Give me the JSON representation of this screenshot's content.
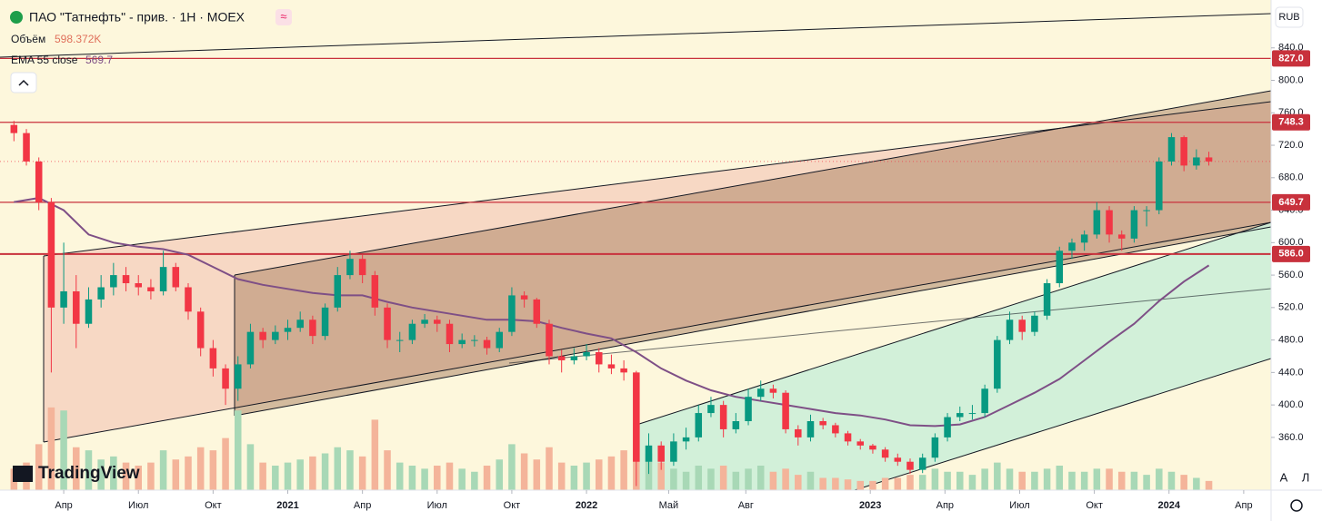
{
  "header": {
    "symbol": "ПАО \"Татнефть\" - прив. · 1H · MOEX",
    "badge": "≈",
    "volume_label": "Объём",
    "volume_value": "598.372K",
    "ema_label": "EMA 55 close",
    "ema_value": "569.7"
  },
  "currency": "RUB",
  "brand": "TradingView",
  "buttons": [
    "A",
    "Л"
  ],
  "chart_data": {
    "type": "candlestick",
    "xlim": [
      0.44,
      51.5
    ],
    "ylim": [
      295,
      899
    ],
    "xticks": [
      {
        "value": 3,
        "label": "Апр"
      },
      {
        "value": 6,
        "label": "Июл"
      },
      {
        "value": 9,
        "label": "Окт"
      },
      {
        "value": 12,
        "label": "2021"
      },
      {
        "value": 15,
        "label": "Апр"
      },
      {
        "value": 18,
        "label": "Июл"
      },
      {
        "value": 21,
        "label": "Окт"
      },
      {
        "value": 24,
        "label": "2022"
      },
      {
        "value": 27.3,
        "label": "Май"
      },
      {
        "value": 30.4,
        "label": "Авг"
      },
      {
        "value": 35.4,
        "label": "2023"
      },
      {
        "value": 38.4,
        "label": "Апр"
      },
      {
        "value": 41.4,
        "label": "Июл"
      },
      {
        "value": 44.4,
        "label": "Окт"
      },
      {
        "value": 47.4,
        "label": "2024"
      },
      {
        "value": 50.4,
        "label": "Апр"
      }
    ],
    "yticks": [
      {
        "value": 360,
        "label": "360.0"
      },
      {
        "value": 400,
        "label": "400.0"
      },
      {
        "value": 440,
        "label": "440.0"
      },
      {
        "value": 480,
        "label": "480.0"
      },
      {
        "value": 520,
        "label": "520.0"
      },
      {
        "value": 560,
        "label": "560.0"
      },
      {
        "value": 600,
        "label": "600.0"
      },
      {
        "value": 640,
        "label": "640.0"
      },
      {
        "value": 680,
        "label": "680.0"
      },
      {
        "value": 720,
        "label": "720.0"
      },
      {
        "value": 760,
        "label": "760.0"
      },
      {
        "value": 800,
        "label": "800.0"
      },
      {
        "value": 840,
        "label": "840.0"
      }
    ],
    "up_color": "#089981",
    "down_color": "#f23645",
    "volume_up_color": "#a8d8b6",
    "volume_down_color": "#f4b49a",
    "volume_ylim": [
      0,
      16000
    ],
    "x": [
      1,
      1.5,
      2,
      2.5,
      3,
      3.5,
      4,
      4.5,
      5,
      5.5,
      6,
      6.5,
      7,
      7.5,
      8,
      8.5,
      9,
      9.5,
      10,
      10.5,
      11,
      11.5,
      12,
      12.5,
      13,
      13.5,
      14,
      14.5,
      15,
      15.5,
      16,
      16.5,
      17,
      17.5,
      18,
      18.5,
      19,
      19.5,
      20,
      20.5,
      21,
      21.5,
      22,
      22.5,
      23,
      23.5,
      24,
      24.5,
      25,
      25.5,
      26,
      26.5,
      27,
      27.5,
      28,
      28.5,
      29,
      29.5,
      30,
      30.5,
      31,
      31.5,
      32,
      32.5,
      33,
      33.5,
      34,
      34.5,
      35,
      35.5,
      36,
      36.5,
      37,
      37.5,
      38,
      38.5,
      39,
      39.5,
      40,
      40.5,
      41,
      41.5,
      42,
      42.5,
      43,
      43.5,
      44,
      44.5,
      45,
      45.5,
      46,
      46.5,
      47,
      47.5,
      48,
      48.5,
      49
    ],
    "candles": [
      [
        745,
        750,
        725,
        735
      ],
      [
        735,
        740,
        695,
        700
      ],
      [
        700,
        705,
        640,
        650
      ],
      [
        650,
        655,
        440,
        520
      ],
      [
        520,
        600,
        500,
        540
      ],
      [
        540,
        560,
        470,
        500
      ],
      [
        500,
        545,
        495,
        530
      ],
      [
        530,
        560,
        520,
        545
      ],
      [
        545,
        575,
        535,
        560
      ],
      [
        560,
        570,
        540,
        550
      ],
      [
        550,
        560,
        535,
        545
      ],
      [
        545,
        555,
        530,
        540
      ],
      [
        540,
        590,
        535,
        570
      ],
      [
        570,
        575,
        540,
        545
      ],
      [
        545,
        550,
        505,
        515
      ],
      [
        515,
        520,
        460,
        470
      ],
      [
        470,
        480,
        435,
        445
      ],
      [
        445,
        450,
        400,
        420
      ],
      [
        420,
        460,
        405,
        450
      ],
      [
        450,
        500,
        445,
        490
      ],
      [
        490,
        495,
        470,
        480
      ],
      [
        480,
        498,
        475,
        490
      ],
      [
        490,
        505,
        480,
        495
      ],
      [
        495,
        515,
        490,
        505
      ],
      [
        505,
        510,
        475,
        485
      ],
      [
        485,
        525,
        480,
        520
      ],
      [
        520,
        570,
        515,
        560
      ],
      [
        560,
        590,
        555,
        580
      ],
      [
        580,
        585,
        550,
        560
      ],
      [
        560,
        565,
        510,
        520
      ],
      [
        520,
        525,
        470,
        480
      ],
      [
        480,
        490,
        465,
        480
      ],
      [
        480,
        505,
        475,
        500
      ],
      [
        500,
        512,
        495,
        505
      ],
      [
        505,
        510,
        490,
        500
      ],
      [
        500,
        505,
        465,
        475
      ],
      [
        475,
        488,
        470,
        480
      ],
      [
        480,
        486,
        472,
        480
      ],
      [
        480,
        484,
        462,
        470
      ],
      [
        470,
        495,
        465,
        490
      ],
      [
        490,
        545,
        485,
        535
      ],
      [
        535,
        540,
        520,
        530
      ],
      [
        530,
        532,
        495,
        500
      ],
      [
        500,
        505,
        450,
        460
      ],
      [
        460,
        468,
        440,
        455
      ],
      [
        455,
        470,
        450,
        460
      ],
      [
        460,
        475,
        455,
        465
      ],
      [
        465,
        470,
        440,
        450
      ],
      [
        450,
        462,
        438,
        445
      ],
      [
        445,
        455,
        430,
        440
      ],
      [
        440,
        442,
        300,
        330
      ],
      [
        330,
        365,
        315,
        350
      ],
      [
        350,
        355,
        320,
        330
      ],
      [
        330,
        365,
        325,
        355
      ],
      [
        355,
        372,
        345,
        360
      ],
      [
        360,
        400,
        355,
        390
      ],
      [
        390,
        410,
        385,
        400
      ],
      [
        400,
        405,
        360,
        370
      ],
      [
        370,
        390,
        365,
        380
      ],
      [
        380,
        420,
        375,
        410
      ],
      [
        410,
        430,
        405,
        420
      ],
      [
        420,
        425,
        408,
        415
      ],
      [
        415,
        418,
        365,
        370
      ],
      [
        370,
        375,
        350,
        360
      ],
      [
        360,
        388,
        355,
        380
      ],
      [
        380,
        384,
        370,
        375
      ],
      [
        375,
        378,
        360,
        365
      ],
      [
        365,
        368,
        350,
        355
      ],
      [
        355,
        358,
        345,
        350
      ],
      [
        350,
        352,
        340,
        345
      ],
      [
        345,
        348,
        330,
        335
      ],
      [
        335,
        340,
        325,
        330
      ],
      [
        330,
        334,
        315,
        320
      ],
      [
        320,
        340,
        316,
        335
      ],
      [
        335,
        365,
        330,
        360
      ],
      [
        360,
        390,
        355,
        385
      ],
      [
        385,
        398,
        380,
        390
      ],
      [
        390,
        400,
        382,
        390
      ],
      [
        390,
        425,
        385,
        420
      ],
      [
        420,
        485,
        415,
        480
      ],
      [
        480,
        515,
        475,
        505
      ],
      [
        505,
        510,
        480,
        490
      ],
      [
        490,
        515,
        485,
        510
      ],
      [
        510,
        555,
        505,
        550
      ],
      [
        550,
        595,
        545,
        590
      ],
      [
        590,
        605,
        580,
        600
      ],
      [
        600,
        615,
        590,
        610
      ],
      [
        610,
        650,
        605,
        640
      ],
      [
        640,
        645,
        600,
        610
      ],
      [
        610,
        615,
        590,
        605
      ],
      [
        605,
        645,
        600,
        640
      ],
      [
        640,
        645,
        620,
        640
      ],
      [
        640,
        705,
        635,
        700
      ],
      [
        700,
        735,
        695,
        730
      ],
      [
        730,
        732,
        688,
        695
      ],
      [
        695,
        715,
        690,
        705
      ],
      [
        705,
        712,
        695,
        700
      ]
    ],
    "volumes": [
      700,
      900,
      1500,
      2700,
      2600,
      1400,
      1300,
      1000,
      1100,
      900,
      800,
      900,
      1300,
      1000,
      1100,
      1400,
      1300,
      1700,
      2600,
      1500,
      900,
      800,
      900,
      1000,
      1100,
      1200,
      1400,
      1300,
      1100,
      2300,
      1300,
      900,
      800,
      700,
      800,
      900,
      700,
      600,
      800,
      1000,
      1500,
      1200,
      1000,
      1400,
      900,
      800,
      900,
      1000,
      1100,
      1300,
      2200,
      1200,
      900,
      700,
      600,
      800,
      700,
      800,
      600,
      700,
      800,
      600,
      700,
      500,
      600,
      400,
      400,
      350,
      300,
      300,
      400,
      400,
      500,
      500,
      700,
      600,
      600,
      500,
      700,
      900,
      700,
      600,
      600,
      700,
      800,
      600,
      600,
      700,
      700,
      600,
      600,
      500,
      700,
      600,
      500,
      400,
      300
    ],
    "ema": {
      "color": "#7e4f86",
      "x": [
        1,
        2,
        3,
        4,
        5,
        6,
        7,
        8,
        9,
        10,
        11,
        12,
        13,
        14,
        15,
        16,
        17,
        18,
        19,
        20,
        21,
        22,
        23,
        24,
        25,
        26,
        27,
        28,
        29,
        30,
        31,
        32,
        33,
        34,
        35,
        36,
        37,
        38,
        39,
        40,
        41,
        42,
        43,
        44,
        45,
        46,
        47,
        48,
        49
      ],
      "values": [
        650,
        655,
        640,
        610,
        600,
        595,
        592,
        585,
        570,
        555,
        548,
        543,
        538,
        535,
        535,
        527,
        520,
        515,
        510,
        505,
        505,
        503,
        495,
        488,
        482,
        465,
        445,
        430,
        418,
        410,
        405,
        400,
        395,
        390,
        387,
        382,
        375,
        374,
        376,
        385,
        400,
        415,
        432,
        455,
        478,
        500,
        528,
        552,
        572
      ]
    },
    "levels_color": "#c8313c",
    "levels": [
      {
        "value": 827,
        "label": "827.0"
      },
      748.3,
      {
        "value": 649.7,
        "label": "649.7"
      },
      {
        "value": 586,
        "label": "586.0"
      }
    ]
  }
}
